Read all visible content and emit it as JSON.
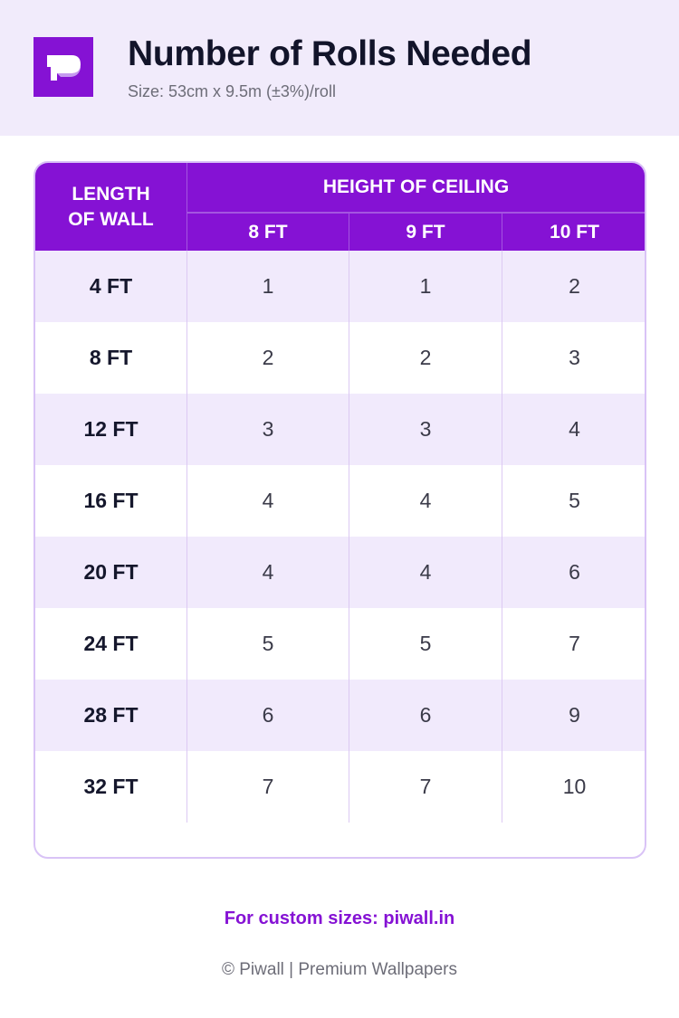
{
  "header": {
    "title": "Number of Rolls Needed",
    "subtitle": "Size: 53cm x 9.5m (±3%)/roll",
    "logo_icon": "piwall-p-logo"
  },
  "table": {
    "row_header": "LENGTH OF WALL",
    "group_header": "HEIGHT OF CEILING",
    "columns": [
      "8 FT",
      "9 FT",
      "10 FT"
    ],
    "rows": [
      {
        "length": "4 FT",
        "values": [
          "1",
          "1",
          "2"
        ]
      },
      {
        "length": "8 FT",
        "values": [
          "2",
          "2",
          "3"
        ]
      },
      {
        "length": "12 FT",
        "values": [
          "3",
          "3",
          "4"
        ]
      },
      {
        "length": "16 FT",
        "values": [
          "4",
          "4",
          "5"
        ]
      },
      {
        "length": "20 FT",
        "values": [
          "4",
          "4",
          "6"
        ]
      },
      {
        "length": "24 FT",
        "values": [
          "5",
          "5",
          "7"
        ]
      },
      {
        "length": "28 FT",
        "values": [
          "6",
          "6",
          "9"
        ]
      },
      {
        "length": "32 FT",
        "values": [
          "7",
          "7",
          "10"
        ]
      }
    ]
  },
  "footer": {
    "custom": "For custom sizes: piwall.in",
    "copyright": "© Piwall | Premium Wallpapers"
  },
  "colors": {
    "accent": "#8512d4",
    "band": "#f1ebfb"
  }
}
